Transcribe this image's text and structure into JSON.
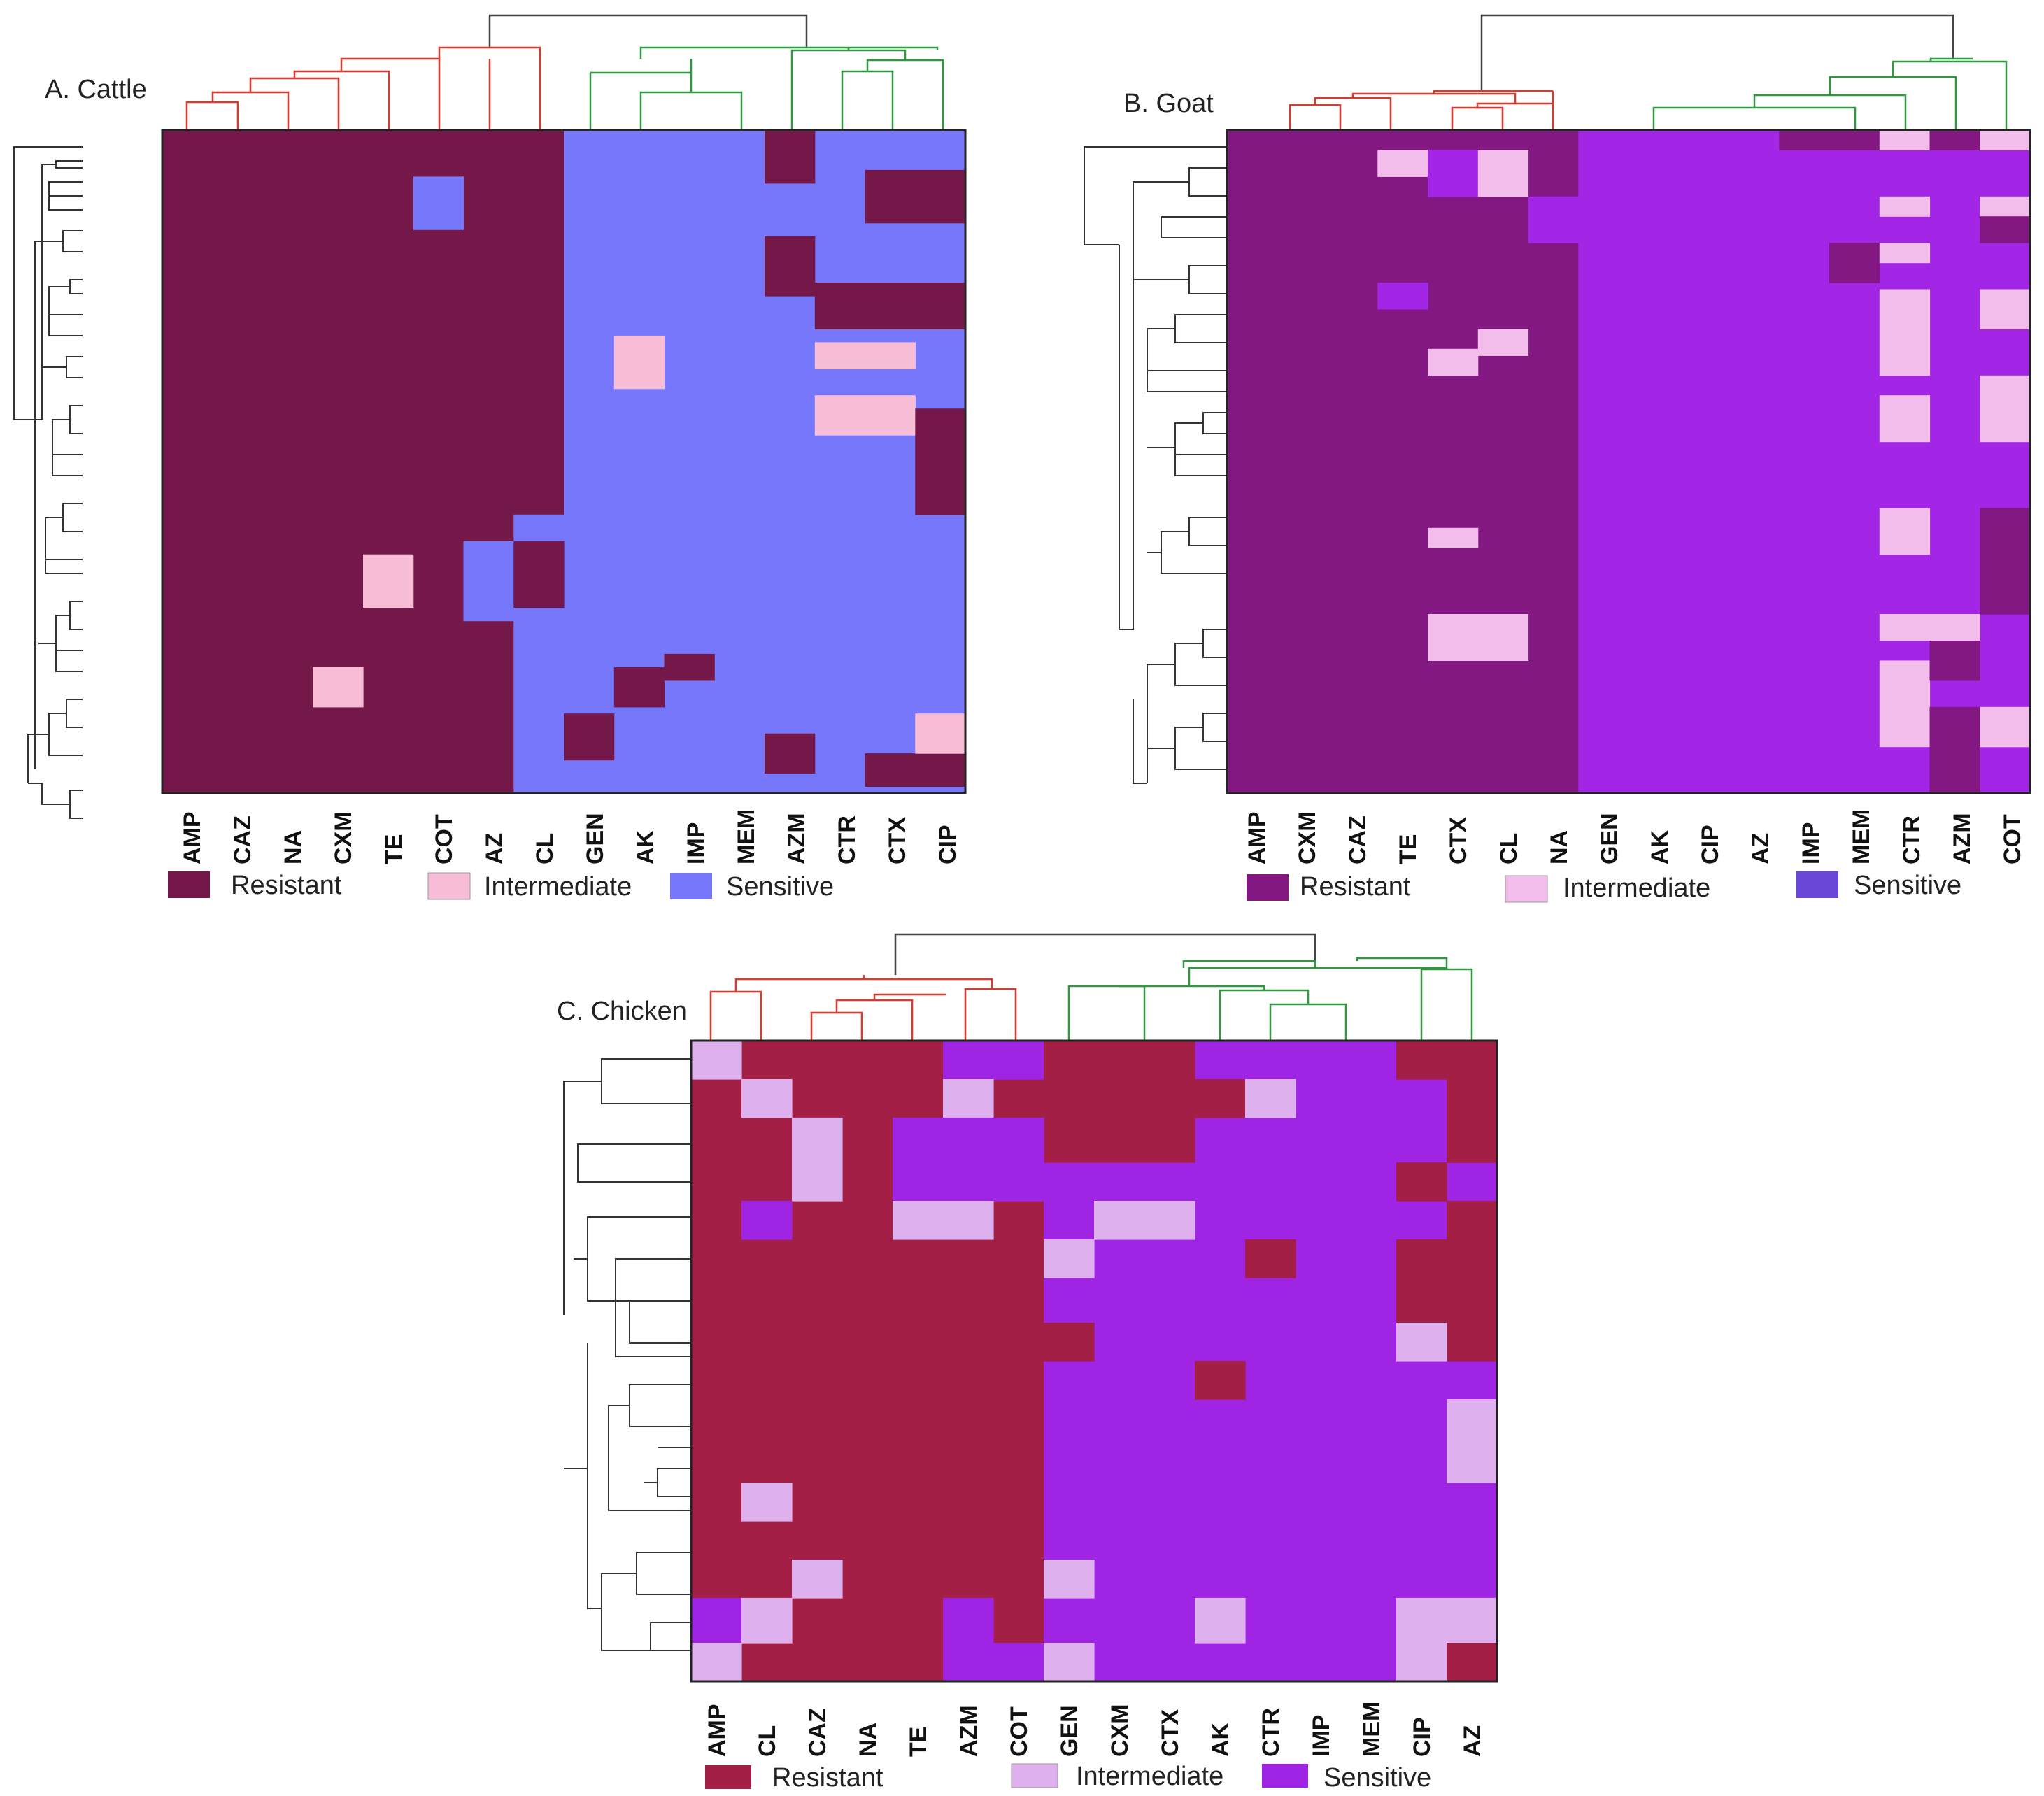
{
  "chart_data": [
    {
      "type": "heatmap",
      "title": "A. Cattle",
      "columns": [
        "AMP",
        "CAZ",
        "NA",
        "CXM",
        "TE",
        "COT",
        "AZ",
        "CL",
        "GEN",
        "AK",
        "IMP",
        "MEM",
        "AZM",
        "CTR",
        "CTX",
        "CIP"
      ],
      "row_count": 50,
      "categories": [
        "Resistant",
        "Intermediate",
        "Sensitive"
      ],
      "colors": {
        "Resistant": "#741849",
        "Intermediate": "#f8bdd6",
        "Sensitive": "#7677fb"
      },
      "column_dendrogram_groups": [
        {
          "color": "#e0382d",
          "columns": [
            "AMP",
            "CAZ",
            "NA",
            "CXM",
            "TE",
            "COT",
            "AZ",
            "CL"
          ]
        },
        {
          "color": "#2e9a3e",
          "columns": [
            "GEN",
            "AK",
            "IMP",
            "MEM",
            "AZM",
            "CTR",
            "CTX",
            "CIP"
          ]
        }
      ],
      "legend": [
        "Resistant",
        "Intermediate",
        "Sensitive"
      ]
    },
    {
      "type": "heatmap",
      "title": "B. Goat",
      "columns": [
        "AMP",
        "CXM",
        "CAZ",
        "TE",
        "CTX",
        "CL",
        "NA",
        "GEN",
        "AK",
        "CIP",
        "AZ",
        "IMP",
        "MEM",
        "CTR",
        "AZM",
        "COT"
      ],
      "row_count": 25,
      "categories": [
        "Resistant",
        "Intermediate",
        "Sensitive"
      ],
      "colors": {
        "Resistant": "#841882",
        "Intermediate": "#f2bdeb",
        "Sensitive": "#a325e6",
        "SensitiveLegend": "#6b47d8"
      },
      "column_dendrogram_groups": [
        {
          "color": "#e0382d",
          "columns": [
            "AMP",
            "CXM",
            "CAZ",
            "TE",
            "CTX",
            "CL",
            "NA"
          ]
        },
        {
          "color": "#2e9a3e",
          "columns": [
            "GEN",
            "AK",
            "CIP",
            "AZ",
            "IMP",
            "MEM",
            "CTR",
            "AZM",
            "COT"
          ]
        }
      ],
      "legend": [
        "Resistant",
        "Intermediate",
        "Sensitive"
      ]
    },
    {
      "type": "heatmap",
      "title": "C. Chicken",
      "columns": [
        "AMP",
        "CL",
        "CAZ",
        "NA",
        "TE",
        "AZM",
        "COT",
        "GEN",
        "CXM",
        "CTX",
        "AK",
        "CTR",
        "IMP",
        "MEM",
        "CIP",
        "AZ"
      ],
      "row_count": 16,
      "categories": [
        "Resistant",
        "Intermediate",
        "Sensitive"
      ],
      "colors": {
        "Resistant": "#a41f45",
        "Intermediate": "#deb0ee",
        "Sensitive": "#9f24e4"
      },
      "column_dendrogram_groups": [
        {
          "color": "#e0382d",
          "columns": [
            "AMP",
            "CL",
            "CAZ",
            "NA",
            "TE",
            "AZM",
            "COT"
          ]
        },
        {
          "color": "#2e9a3e",
          "columns": [
            "GEN",
            "CXM",
            "CTX",
            "AK",
            "CTR",
            "IMP",
            "MEM",
            "CIP",
            "AZ"
          ]
        }
      ],
      "legend": [
        "Resistant",
        "Intermediate",
        "Sensitive"
      ]
    }
  ]
}
